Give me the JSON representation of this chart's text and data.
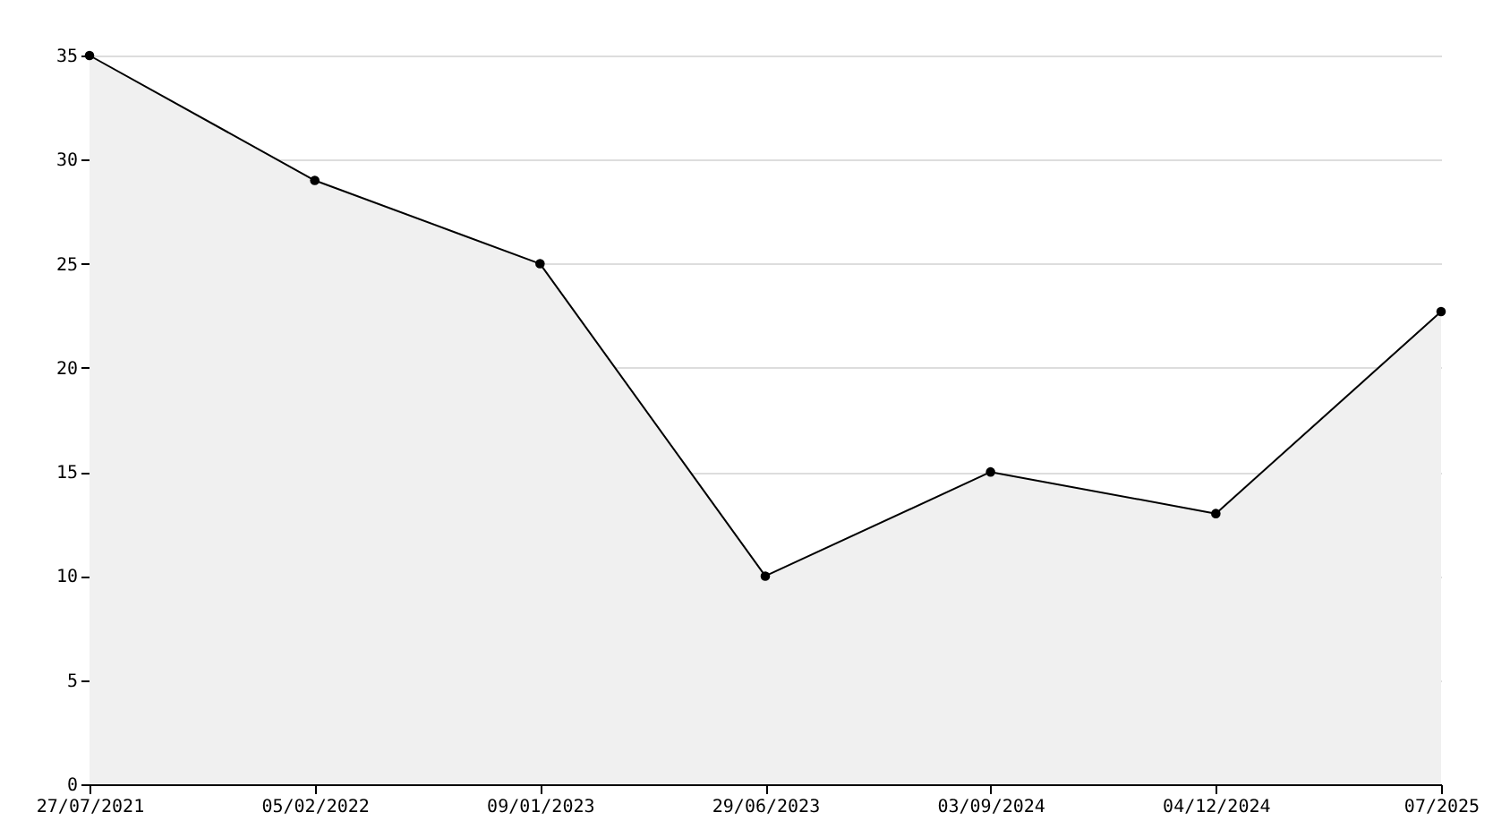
{
  "chart_data": {
    "type": "area",
    "categories": [
      "27/07/2021",
      "05/02/2022",
      "09/01/2023",
      "29/06/2023",
      "03/09/2024",
      "04/12/2024",
      "07/2025"
    ],
    "series": [
      {
        "color": "#000000",
        "values": [
          35,
          29,
          25,
          10,
          15,
          13,
          22.7
        ]
      }
    ],
    "ylim": [
      0,
      35
    ],
    "yticks": [
      0,
      5,
      10,
      15,
      20,
      25,
      30,
      35
    ],
    "grid": "y",
    "marker": "circle",
    "line_style": "solid"
  }
}
